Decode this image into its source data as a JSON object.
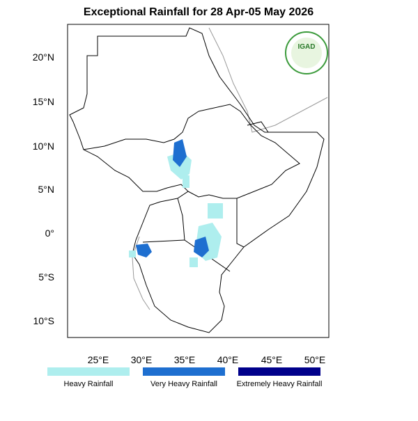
{
  "title": "Exceptional Rainfall for 28 Apr-05 May 2026",
  "logo": "IGAD",
  "lon_ticks": [
    "25°E",
    "30°E",
    "35°E",
    "40°E",
    "45°E",
    "50°E"
  ],
  "lat_ticks": [
    "20°N",
    "15°N",
    "10°N",
    "5°N",
    "0°",
    "5°S",
    "10°S"
  ],
  "legend": [
    {
      "label": "Heavy Rainfall",
      "color": "#aeeeee"
    },
    {
      "label": "Very Heavy Rainfall",
      "color": "#1e6fd0"
    },
    {
      "label": "Extremely Heavy Rainfall",
      "color": "#00008b"
    }
  ]
}
